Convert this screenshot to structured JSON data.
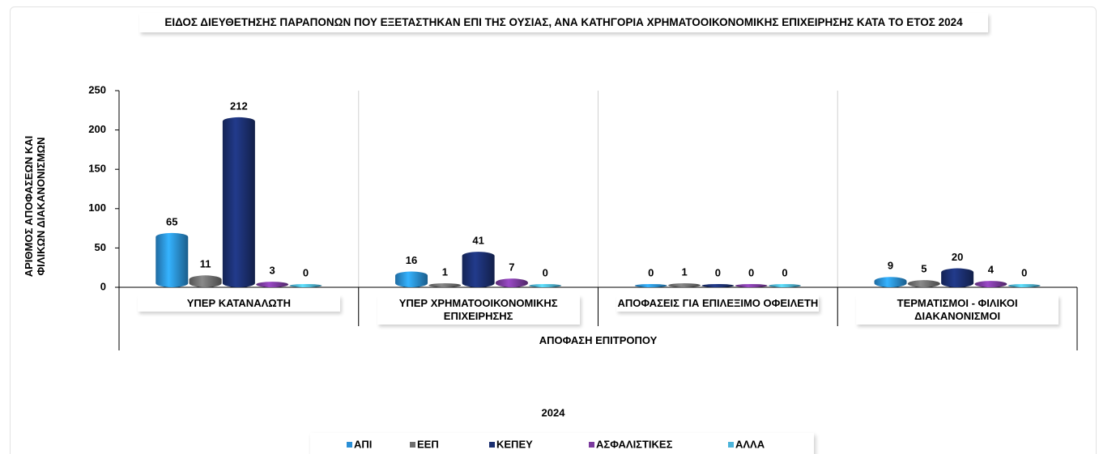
{
  "chart_data": {
    "type": "bar",
    "title": "ΕΙΔΟΣ ΔΙΕΥΘΕΤΗΣΗΣ ΠΑΡΑΠΟΝΩΝ ΠΟΥ ΕΞΕΤΑΣΤΗΚΑΝ ΕΠΙ ΤΗΣ ΟΥΣΙΑΣ, ΑΝΑ ΚΑΤΗΓΟΡΙΑ ΧΡΗΜΑΤΟΟΙΚΟΝΟΜΙΚΗΣ ΕΠΙΧΕΙΡΗΣΗΣ ΚΑΤΑ ΤΟ ΕΤΟΣ 2024",
    "y_label": "ΑΡΙΘΜΟΣ ΑΠΟΦΑΣΕΩΝ ΚΑΙ ΦΙΛΙΚΩΝ ΔΙΑΚΑΝΟΝΙΣΜΩΝ",
    "x_group_label": "ΑΠΟΦΑΣΗ ΕΠΙΤΡΟΠΟΥ",
    "legend_title": "2024",
    "categories": [
      "ΥΠΕΡ ΚΑΤΑΝΑΛΩΤΗ",
      "ΥΠΕΡ ΧΡΗΜΑΤΟΟΙΚΟΝΟΜΙΚΗΣ ΕΠΙΧΕΙΡΗΣΗΣ",
      "ΑΠΟΦΑΣΕΙΣ ΓΙΑ ΕΠΙΛΕΞΙΜΟ ΟΦΕΙΛΕΤΗ",
      "ΤΕΡΜΑΤΙΣΜΟΙ - ΦΙΛΙΚΟΙ ΔΙΑΚΑΝΟΝΙΣΜΟΙ"
    ],
    "series": [
      {
        "name": "ΑΠΙ",
        "color": "#2a8fd6",
        "values": [
          65,
          16,
          0,
          9
        ]
      },
      {
        "name": "ΕΕΠ",
        "color": "#6e6e6e",
        "values": [
          11,
          1,
          1,
          5
        ]
      },
      {
        "name": "ΚΕΠΕΥ",
        "color": "#1b2f70",
        "values": [
          212,
          41,
          0,
          20
        ]
      },
      {
        "name": "ΑΣΦΑΛΙΣΤΙΚΕΣ",
        "color": "#7b3a9e",
        "values": [
          3,
          7,
          0,
          4
        ]
      },
      {
        "name": "ΑΛΛΑ",
        "color": "#4cb4da",
        "values": [
          0,
          0,
          0,
          0
        ]
      }
    ],
    "ylim": [
      0,
      250
    ],
    "yticks": [
      0,
      50,
      100,
      150,
      200,
      250
    ],
    "legend": "bottom"
  }
}
